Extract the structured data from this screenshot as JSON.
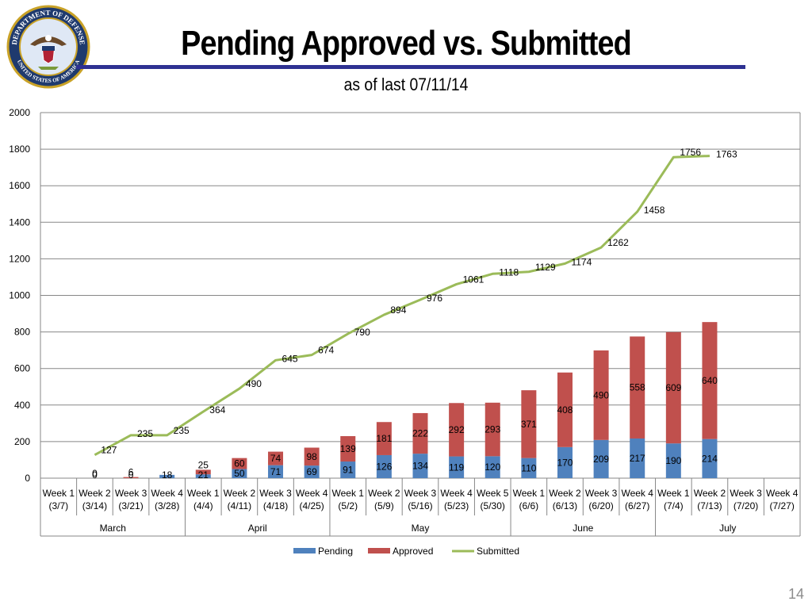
{
  "slide": {
    "title": "Pending Approved vs. Submitted",
    "subtitle": "as of last 07/11/14",
    "page_number": "14",
    "seal_text_top": "DEPARTMENT OF DEFENSE",
    "seal_text_bottom": "UNITED STATES OF AMERICA"
  },
  "colors": {
    "pending": "#4f81bd",
    "approved": "#c0504d",
    "submitted": "#9bbb59",
    "rule": "#2e3192"
  },
  "chart_data": {
    "type": "bar",
    "stacked": true,
    "categories": [
      "Week 1 (3/7)",
      "Week 2 (3/14)",
      "Week 3 (3/21)",
      "Week 4 (3/28)",
      "Week 1 (4/4)",
      "Week 2 (4/11)",
      "Week 3 (4/18)",
      "Week 4 (4/25)",
      "Week 1 (5/2)",
      "Week 2 (5/9)",
      "Week 3 (5/16)",
      "Week 4 (5/23)",
      "Week 5 (5/30)",
      "Week 1 (6/6)",
      "Week 2 (6/13)",
      "Week 3 (6/20)",
      "Week 4 (6/27)",
      "Week 1 (7/4)",
      "Week 2 (7/13)",
      "Week 3 (7/20)",
      "Week 4 (7/27)"
    ],
    "week_labels": [
      "Week 1",
      "Week 2",
      "Week 3",
      "Week 4",
      "Week 1",
      "Week 2",
      "Week 3",
      "Week 4",
      "Week 1",
      "Week 2",
      "Week 3",
      "Week 4",
      "Week 5",
      "Week 1",
      "Week 2",
      "Week 3",
      "Week 4",
      "Week 1",
      "Week 2",
      "Week 3",
      "Week 4"
    ],
    "date_labels": [
      "(3/7)",
      "(3/14)",
      "(3/21)",
      "(3/28)",
      "(4/4)",
      "(4/11)",
      "(4/18)",
      "(4/25)",
      "(5/2)",
      "(5/9)",
      "(5/16)",
      "(5/23)",
      "(5/30)",
      "(6/6)",
      "(6/13)",
      "(6/20)",
      "(6/27)",
      "(7/4)",
      "(7/13)",
      "(7/20)",
      "(7/27)"
    ],
    "groups": [
      {
        "name": "March",
        "count": 4
      },
      {
        "name": "April",
        "count": 4
      },
      {
        "name": "May",
        "count": 5
      },
      {
        "name": "June",
        "count": 4
      },
      {
        "name": "July",
        "count": 4
      }
    ],
    "series": [
      {
        "name": "Pending",
        "type": "bar",
        "values": [
          null,
          0,
          0,
          18,
          21,
          50,
          71,
          69,
          91,
          126,
          134,
          119,
          120,
          110,
          170,
          209,
          217,
          190,
          214,
          null,
          null
        ]
      },
      {
        "name": "Approved",
        "type": "bar",
        "values": [
          null,
          0,
          6,
          null,
          25,
          60,
          74,
          98,
          139,
          181,
          222,
          292,
          293,
          371,
          408,
          490,
          558,
          609,
          640,
          null,
          null
        ]
      },
      {
        "name": "Submitted",
        "type": "line",
        "values": [
          null,
          127,
          235,
          235,
          364,
          490,
          645,
          674,
          790,
          894,
          976,
          1061,
          1118,
          1129,
          1174,
          1262,
          1458,
          1756,
          1763,
          null,
          null
        ]
      }
    ],
    "ylim": [
      0,
      2000
    ],
    "yticks": [
      0,
      200,
      400,
      600,
      800,
      1000,
      1200,
      1400,
      1600,
      1800,
      2000
    ],
    "grid": true,
    "legend": "bottom"
  }
}
